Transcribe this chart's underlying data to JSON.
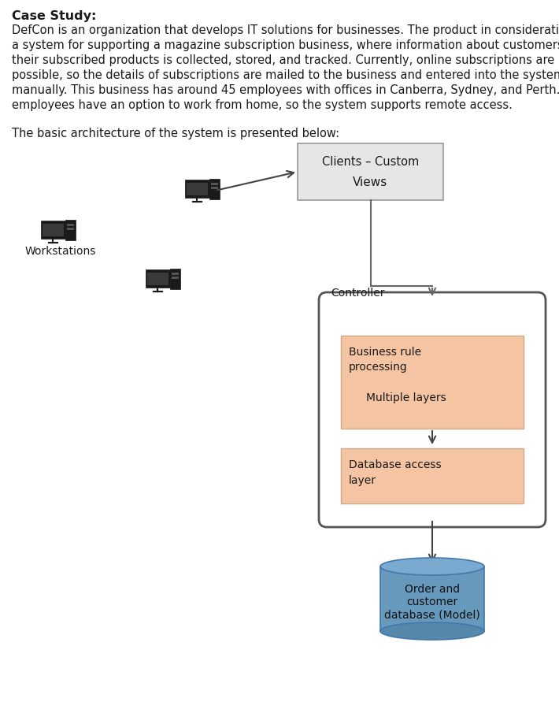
{
  "bg_color": "#ffffff",
  "text_color": "#1a1a1a",
  "title": "Case Study:",
  "para_lines": [
    "DefCon is an organization that develops IT solutions for businesses. The product in consideration is",
    "a system for supporting a magazine subscription business, where information about customers and",
    "their subscribed products is collected, stored, and tracked. Currently, online subscriptions are not",
    "possible, so the details of subscriptions are mailed to the business and entered into the system",
    "manually. This business has around 45 employees with offices in Canberra, Sydney, and Perth. The",
    "employees have an option to work from home, so the system supports remote access."
  ],
  "arch_intro": "The basic architecture of the system is presented below:",
  "clients_label1": "Clients – Custom",
  "clients_label2": "Views",
  "clients_bg": "#e6e6e6",
  "clients_border": "#999999",
  "controller_label": "Controller",
  "controller_border": "#555555",
  "biz_label1": "Business rule",
  "biz_label2": "processing",
  "biz_label3": "Multiple layers",
  "biz_bg": "#f5c5a3",
  "biz_border": "#ccaa88",
  "db_label1": "Database access",
  "db_label2": "layer",
  "db_bg": "#f5c5a3",
  "db_border": "#ccaa88",
  "cyl_label1": "Order and",
  "cyl_label2": "customer",
  "cyl_label3": "database (Model)",
  "cyl_top_color": "#7aaacf",
  "cyl_body_color": "#6699bb",
  "cyl_border": "#4477aa",
  "workstations_label": "Workstations",
  "arrow_color": "#444444",
  "line_color": "#666666"
}
